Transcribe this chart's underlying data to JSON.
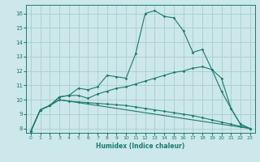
{
  "xlabel": "Humidex (Indice chaleur)",
  "bg_color": "#cce8ea",
  "grid_color": "#aacccc",
  "line_color": "#1a7a6e",
  "xlim": [
    -0.5,
    23.5
  ],
  "ylim": [
    7.7,
    16.6
  ],
  "yticks": [
    8,
    9,
    10,
    11,
    12,
    13,
    14,
    15,
    16
  ],
  "xticks": [
    0,
    1,
    2,
    3,
    4,
    5,
    6,
    7,
    8,
    9,
    10,
    11,
    12,
    13,
    14,
    15,
    16,
    17,
    18,
    19,
    20,
    21,
    22,
    23
  ],
  "lines": [
    {
      "x": [
        0,
        1,
        2,
        3,
        4,
        5,
        6,
        7,
        8,
        9,
        10,
        11,
        12,
        13,
        14,
        15,
        16,
        17,
        18,
        19,
        20,
        21,
        22,
        23
      ],
      "y": [
        7.8,
        9.3,
        9.6,
        10.2,
        10.3,
        10.8,
        10.7,
        10.9,
        11.7,
        11.6,
        11.5,
        13.2,
        16.0,
        16.2,
        15.8,
        15.7,
        14.8,
        13.3,
        13.5,
        12.1,
        10.6,
        9.4,
        8.3,
        8.0
      ]
    },
    {
      "x": [
        0,
        1,
        2,
        3,
        4,
        5,
        6,
        7,
        8,
        9,
        10,
        11,
        12,
        13,
        14,
        15,
        16,
        17,
        18,
        19,
        20,
        21,
        22,
        23
      ],
      "y": [
        7.8,
        9.3,
        9.6,
        10.2,
        10.3,
        10.3,
        10.1,
        10.4,
        10.6,
        10.8,
        10.9,
        11.1,
        11.3,
        11.5,
        11.7,
        11.9,
        12.0,
        12.2,
        12.3,
        12.1,
        11.5,
        9.4,
        8.3,
        8.0
      ]
    },
    {
      "x": [
        0,
        1,
        2,
        3,
        4,
        5,
        6,
        7,
        8,
        9,
        10,
        11,
        12,
        13,
        14,
        15,
        16,
        17,
        18,
        19,
        20,
        21,
        22,
        23
      ],
      "y": [
        7.8,
        9.3,
        9.6,
        10.0,
        9.9,
        9.85,
        9.8,
        9.75,
        9.7,
        9.65,
        9.6,
        9.5,
        9.4,
        9.3,
        9.2,
        9.1,
        9.0,
        8.9,
        8.75,
        8.6,
        8.45,
        8.3,
        8.15,
        8.0
      ]
    },
    {
      "x": [
        0,
        1,
        2,
        3,
        23
      ],
      "y": [
        7.8,
        9.3,
        9.6,
        10.0,
        8.0
      ]
    }
  ]
}
